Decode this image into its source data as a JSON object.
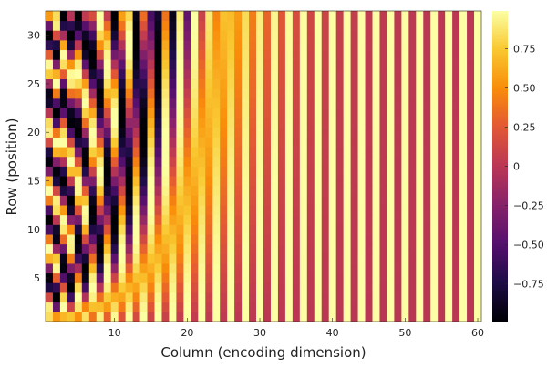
{
  "chart_data": {
    "type": "heatmap",
    "title": "",
    "xlabel": "Column (encoding dimension)",
    "ylabel": "Row (position)",
    "x_range": [
      1,
      60
    ],
    "y_range": [
      1,
      32
    ],
    "xticks": [
      10,
      20,
      30,
      40,
      50,
      60
    ],
    "yticks": [
      5,
      10,
      15,
      20,
      25,
      30
    ],
    "z_range": [
      -0.99,
      0.99
    ],
    "colorbar_ticks": [
      0.75,
      0.5,
      0.25,
      0,
      -0.25,
      -0.5,
      -0.75
    ],
    "colorbar_tick_labels": [
      "0.75",
      "0.50",
      "0.25",
      "0",
      "−0.25",
      "−0.50",
      "−0.75"
    ],
    "colormap": "inferno",
    "grid": false,
    "encoding": "sinusoidal positional encoding: value(row, col) = sin(row * 10000^(-2k/60)) for odd col = 2k+1, cos(row * 10000^(-2k/60)) for even col = 2k+2"
  }
}
